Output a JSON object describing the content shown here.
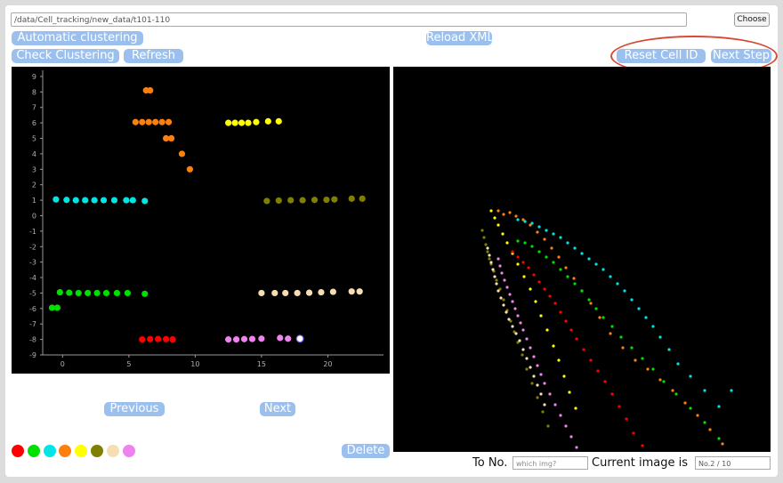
{
  "path_value": "/data/Cell_tracking/new_data/t101-110",
  "buttons": {
    "choose": "Choose",
    "automatic_clustering": "Automatic clustering",
    "reload_xml": "Reload XML",
    "check_clustering": "Check Clustering",
    "refresh": "Refresh",
    "reset_cell_id": "Reset Cell ID",
    "next_step": "Next Step",
    "previous": "Previous",
    "next": "Next",
    "delete": "Delete"
  },
  "to_no_label": "To No.",
  "to_no_placeholder": "which img?",
  "current_image_label": "Current image is",
  "current_image_value": "No.2 / 10",
  "palette": [
    "#ff0000",
    "#00e000",
    "#00e5e5",
    "#ff7f0e",
    "#ffff00",
    "#808000",
    "#f5deb3",
    "#ee82ee"
  ],
  "chart_data": {
    "type": "scatter",
    "xlim": [
      -1.5,
      24.2
    ],
    "ylim": [
      -9,
      9.4
    ],
    "xticks": [
      0,
      5,
      10,
      15,
      20
    ],
    "yticks": [
      9,
      8,
      7,
      6,
      5,
      4,
      3,
      2,
      1,
      0,
      -1,
      -2,
      -3,
      -4,
      -5,
      -6,
      -7,
      -8,
      -9
    ],
    "grid": false,
    "series": [
      {
        "color": "#ff7f0e",
        "points": [
          [
            6.3,
            8.1
          ],
          [
            6.6,
            8.1
          ],
          [
            5.5,
            6.05
          ],
          [
            6.0,
            6.05
          ],
          [
            6.5,
            6.05
          ],
          [
            7.0,
            6.05
          ],
          [
            7.5,
            6.05
          ],
          [
            8.0,
            6.05
          ],
          [
            7.8,
            5.0
          ],
          [
            8.2,
            5.0
          ],
          [
            9.0,
            4.0
          ],
          [
            9.6,
            3.0
          ]
        ]
      },
      {
        "color": "#ffff00",
        "points": [
          [
            12.5,
            6.0
          ],
          [
            13.0,
            6.0
          ],
          [
            13.5,
            6.0
          ],
          [
            14.0,
            6.0
          ],
          [
            14.6,
            6.05
          ],
          [
            15.5,
            6.1
          ],
          [
            16.3,
            6.1
          ]
        ]
      },
      {
        "color": "#00e5e5",
        "points": [
          [
            -0.5,
            1.05
          ],
          [
            0.3,
            1.02
          ],
          [
            1.0,
            1.0
          ],
          [
            1.7,
            1.0
          ],
          [
            2.4,
            1.0
          ],
          [
            3.1,
            1.0
          ],
          [
            3.9,
            1.0
          ],
          [
            4.8,
            1.0
          ],
          [
            5.3,
            1.0
          ],
          [
            6.2,
            0.95
          ]
        ]
      },
      {
        "color": "#808000",
        "points": [
          [
            15.4,
            0.95
          ],
          [
            16.3,
            0.98
          ],
          [
            17.2,
            1.0
          ],
          [
            18.1,
            1.0
          ],
          [
            19.0,
            1.02
          ],
          [
            19.9,
            1.03
          ],
          [
            20.5,
            1.05
          ],
          [
            21.8,
            1.1
          ],
          [
            22.6,
            1.1
          ]
        ]
      },
      {
        "color": "#00e000",
        "points": [
          [
            -0.2,
            -4.95
          ],
          [
            0.5,
            -4.98
          ],
          [
            1.2,
            -5.0
          ],
          [
            1.9,
            -5.0
          ],
          [
            2.6,
            -5.0
          ],
          [
            3.3,
            -5.0
          ],
          [
            4.1,
            -5.0
          ],
          [
            4.9,
            -5.0
          ],
          [
            6.2,
            -5.05
          ],
          [
            -0.8,
            -5.95
          ],
          [
            -0.4,
            -5.95
          ]
        ]
      },
      {
        "color": "#f5deb3",
        "points": [
          [
            15.0,
            -5.0
          ],
          [
            16.0,
            -5.0
          ],
          [
            16.8,
            -5.0
          ],
          [
            17.7,
            -5.0
          ],
          [
            18.6,
            -4.98
          ],
          [
            19.5,
            -4.95
          ],
          [
            20.4,
            -4.92
          ],
          [
            21.8,
            -4.9
          ],
          [
            22.4,
            -4.9
          ]
        ]
      },
      {
        "color": "#ff0000",
        "points": [
          [
            6.0,
            -8.0
          ],
          [
            6.6,
            -7.98
          ],
          [
            7.2,
            -7.97
          ],
          [
            7.8,
            -7.98
          ],
          [
            8.3,
            -8.0
          ]
        ]
      },
      {
        "color": "#ee82ee",
        "points": [
          [
            12.5,
            -8.0
          ],
          [
            13.1,
            -8.0
          ],
          [
            13.7,
            -7.98
          ],
          [
            14.3,
            -7.97
          ],
          [
            15.0,
            -7.95
          ],
          [
            16.4,
            -7.9
          ],
          [
            17.0,
            -7.95
          ],
          [
            17.9,
            -7.95
          ]
        ]
      }
    ]
  },
  "track_data": [
    {
      "color": "#ffff00",
      "points": [
        [
          110,
          162
        ],
        [
          114,
          170
        ],
        [
          118,
          178
        ],
        [
          123,
          188
        ],
        [
          128,
          198
        ],
        [
          134,
          210
        ],
        [
          140,
          222
        ],
        [
          147,
          236
        ],
        [
          154,
          250
        ],
        [
          160,
          264
        ],
        [
          166,
          280
        ],
        [
          173,
          296
        ],
        [
          180,
          314
        ],
        [
          186,
          330
        ],
        [
          192,
          348
        ],
        [
          198,
          366
        ],
        [
          205,
          384
        ]
      ]
    },
    {
      "color": "#ff7f0e",
      "points": [
        [
          118,
          162
        ],
        [
          124,
          166
        ],
        [
          131,
          164
        ],
        [
          138,
          168
        ],
        [
          146,
          172
        ],
        [
          154,
          178
        ],
        [
          162,
          186
        ],
        [
          170,
          194
        ],
        [
          178,
          204
        ],
        [
          186,
          214
        ],
        [
          194,
          226
        ],
        [
          203,
          238
        ],
        [
          212,
          252
        ],
        [
          222,
          266
        ],
        [
          232,
          282
        ],
        [
          244,
          300
        ],
        [
          258,
          316
        ],
        [
          272,
          330
        ],
        [
          286,
          340
        ],
        [
          300,
          352
        ],
        [
          314,
          364
        ],
        [
          328,
          378
        ],
        [
          342,
          392
        ],
        [
          356,
          408
        ],
        [
          370,
          424
        ],
        [
          386,
          440
        ],
        [
          402,
          456
        ],
        [
          416,
          472
        ]
      ]
    },
    {
      "color": "#00e5e5",
      "points": [
        [
          140,
          172
        ],
        [
          148,
          174
        ],
        [
          156,
          176
        ],
        [
          164,
          180
        ],
        [
          172,
          184
        ],
        [
          180,
          188
        ],
        [
          188,
          192
        ],
        [
          196,
          198
        ],
        [
          204,
          204
        ],
        [
          212,
          210
        ],
        [
          220,
          216
        ],
        [
          228,
          222
        ],
        [
          236,
          228
        ],
        [
          244,
          236
        ],
        [
          252,
          244
        ],
        [
          260,
          252
        ],
        [
          268,
          262
        ],
        [
          276,
          272
        ],
        [
          284,
          282
        ],
        [
          292,
          292
        ],
        [
          300,
          304
        ],
        [
          310,
          318
        ],
        [
          320,
          334
        ],
        [
          334,
          348
        ],
        [
          350,
          364
        ],
        [
          366,
          382
        ],
        [
          380,
          364
        ]
      ]
    },
    {
      "color": "#00e000",
      "points": [
        [
          140,
          196
        ],
        [
          148,
          198
        ],
        [
          156,
          202
        ],
        [
          164,
          208
        ],
        [
          172,
          214
        ],
        [
          180,
          220
        ],
        [
          188,
          228
        ],
        [
          196,
          236
        ],
        [
          204,
          244
        ],
        [
          212,
          252
        ],
        [
          220,
          262
        ],
        [
          228,
          272
        ],
        [
          236,
          282
        ],
        [
          246,
          292
        ],
        [
          256,
          304
        ],
        [
          268,
          316
        ],
        [
          280,
          328
        ],
        [
          292,
          340
        ],
        [
          304,
          354
        ],
        [
          318,
          368
        ],
        [
          334,
          384
        ],
        [
          350,
          400
        ],
        [
          366,
          418
        ],
        [
          382,
          436
        ],
        [
          392,
          448
        ]
      ]
    },
    {
      "color": "#ff0000",
      "points": [
        [
          134,
          208
        ],
        [
          140,
          214
        ],
        [
          146,
          220
        ],
        [
          152,
          226
        ],
        [
          158,
          234
        ],
        [
          164,
          242
        ],
        [
          170,
          250
        ],
        [
          176,
          258
        ],
        [
          182,
          266
        ],
        [
          188,
          276
        ],
        [
          194,
          286
        ],
        [
          200,
          296
        ],
        [
          206,
          306
        ],
        [
          214,
          318
        ],
        [
          222,
          330
        ],
        [
          230,
          342
        ],
        [
          238,
          354
        ],
        [
          246,
          368
        ],
        [
          254,
          382
        ],
        [
          262,
          396
        ],
        [
          270,
          412
        ],
        [
          280,
          426
        ],
        [
          290,
          440
        ],
        [
          300,
          452
        ]
      ]
    },
    {
      "color": "#808000",
      "points": [
        [
          100,
          184
        ],
        [
          102,
          192
        ],
        [
          104,
          200
        ],
        [
          106,
          208
        ],
        [
          108,
          216
        ],
        [
          110,
          222
        ],
        [
          113,
          230
        ],
        [
          116,
          240
        ],
        [
          120,
          250
        ],
        [
          124,
          262
        ],
        [
          128,
          274
        ],
        [
          132,
          286
        ],
        [
          136,
          298
        ],
        [
          140,
          310
        ],
        [
          145,
          324
        ],
        [
          150,
          340
        ],
        [
          156,
          356
        ],
        [
          162,
          372
        ],
        [
          168,
          388
        ],
        [
          174,
          404
        ]
      ]
    },
    {
      "color": "#ee82ee",
      "points": [
        [
          118,
          216
        ],
        [
          120,
          224
        ],
        [
          122,
          232
        ],
        [
          125,
          240
        ],
        [
          128,
          248
        ],
        [
          131,
          256
        ],
        [
          134,
          264
        ],
        [
          137,
          272
        ],
        [
          140,
          280
        ],
        [
          143,
          288
        ],
        [
          146,
          296
        ],
        [
          150,
          306
        ],
        [
          154,
          316
        ],
        [
          158,
          326
        ],
        [
          162,
          336
        ],
        [
          166,
          346
        ],
        [
          170,
          356
        ],
        [
          176,
          368
        ],
        [
          182,
          380
        ],
        [
          188,
          392
        ],
        [
          194,
          404
        ],
        [
          200,
          416
        ],
        [
          206,
          428
        ],
        [
          212,
          440
        ],
        [
          218,
          452
        ],
        [
          224,
          466
        ],
        [
          230,
          480
        ]
      ]
    },
    {
      "color": "#f5deb3",
      "points": [
        [
          106,
          204
        ],
        [
          108,
          212
        ],
        [
          110,
          220
        ],
        [
          112,
          228
        ],
        [
          114,
          236
        ],
        [
          116,
          244
        ],
        [
          118,
          252
        ],
        [
          121,
          260
        ],
        [
          124,
          268
        ],
        [
          127,
          276
        ],
        [
          130,
          284
        ],
        [
          134,
          292
        ],
        [
          138,
          300
        ],
        [
          142,
          308
        ],
        [
          146,
          318
        ],
        [
          150,
          328
        ],
        [
          154,
          338
        ],
        [
          158,
          348
        ],
        [
          162,
          358
        ],
        [
          166,
          368
        ],
        [
          170,
          380
        ]
      ]
    }
  ]
}
